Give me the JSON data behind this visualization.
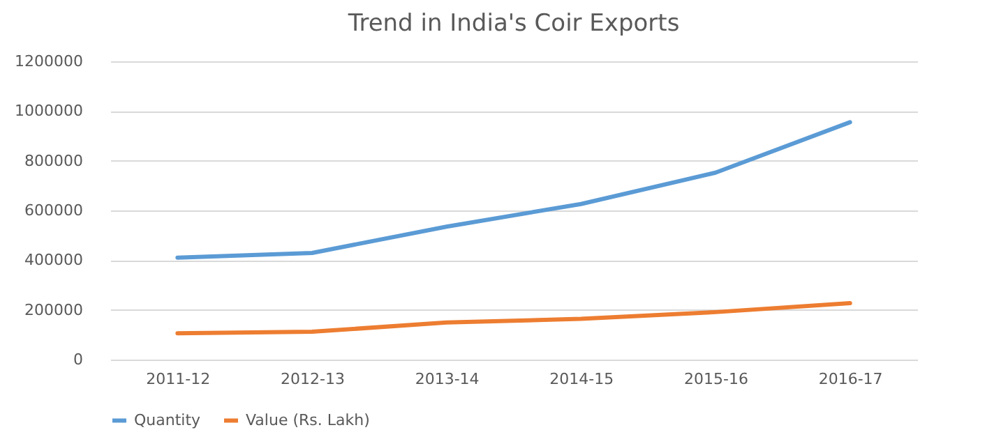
{
  "chart_data": {
    "type": "line",
    "title": "Trend in India's Coir Exports",
    "categories": [
      "2011-12",
      "2012-13",
      "2013-14",
      "2014-15",
      "2015-16",
      "2016-17"
    ],
    "series": [
      {
        "name": "Quantity",
        "color": "#5b9bd5",
        "values": [
          410000,
          429000,
          535000,
          626000,
          752000,
          955000
        ]
      },
      {
        "name": "Value (Rs. Lakh)",
        "color": "#ed7d31",
        "values": [
          106000,
          112000,
          149000,
          164000,
          191000,
          227000
        ]
      }
    ],
    "ylim": [
      0,
      1200000
    ],
    "yticks": [
      0,
      200000,
      400000,
      600000,
      800000,
      1000000,
      1200000
    ],
    "grid": "y",
    "legend": "bottom",
    "marker": "none",
    "line_style": "solid"
  }
}
